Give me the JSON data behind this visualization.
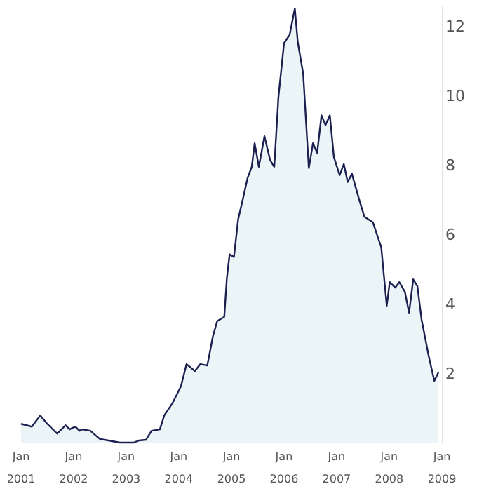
{
  "chart_data": {
    "type": "area",
    "x": [
      "2001-01-01",
      "2001-03-17",
      "2001-05-14",
      "2001-07-02",
      "2001-09-09",
      "2001-11-06",
      "2001-12-04",
      "2002-01-12",
      "2002-02-11",
      "2002-03-01",
      "2002-04-27",
      "2002-07-04",
      "2002-09-01",
      "2002-11-17",
      "2003-02-22",
      "2003-03-30",
      "2003-05-18",
      "2003-06-26",
      "2003-08-23",
      "2003-09-22",
      "2003-11-19",
      "2004-01-16",
      "2004-02-24",
      "2004-04-22",
      "2004-05-30",
      "2004-07-17",
      "2004-08-25",
      "2004-09-24",
      "2004-11-12",
      "2004-11-30",
      "2004-12-19",
      "2005-01-18",
      "2005-02-16",
      "2005-03-15",
      "2005-04-23",
      "2005-05-22",
      "2005-06-11",
      "2005-07-10",
      "2005-08-18",
      "2005-09-26",
      "2005-10-25",
      "2005-11-23",
      "2006-01-01",
      "2006-02-09",
      "2006-03-17",
      "2006-04-06",
      "2006-05-14",
      "2006-06-22",
      "2006-07-21",
      "2006-08-19",
      "2006-09-18",
      "2006-10-16",
      "2006-11-15",
      "2006-12-13",
      "2007-01-22",
      "2007-02-20",
      "2007-03-19",
      "2007-04-17",
      "2007-06-05",
      "2007-07-13",
      "2007-09-10",
      "2007-11-07",
      "2007-12-15",
      "2008-01-05",
      "2008-02-12",
      "2008-03-11",
      "2008-04-19",
      "2008-05-18",
      "2008-06-16",
      "2008-07-15",
      "2008-08-13",
      "2008-10-01",
      "2008-11-09",
      "2008-12-08"
    ],
    "series": [
      {
        "color": "#1c2050",
        "values": [
          0.56,
          0.48,
          0.8,
          0.56,
          0.28,
          0.52,
          0.4,
          0.48,
          0.36,
          0.4,
          0.36,
          0.12,
          0.08,
          0.02,
          0.02,
          0.08,
          0.1,
          0.36,
          0.4,
          0.8,
          1.16,
          1.64,
          2.28,
          2.08,
          2.28,
          2.24,
          3.08,
          3.52,
          3.64,
          4.76,
          5.44,
          5.36,
          6.44,
          6.92,
          7.64,
          7.96,
          8.64,
          7.96,
          8.84,
          8.16,
          7.96,
          9.96,
          11.52,
          11.76,
          12.52,
          11.56,
          10.64,
          7.92,
          8.64,
          8.36,
          9.44,
          9.16,
          9.44,
          8.24,
          7.72,
          8.04,
          7.52,
          7.76,
          7.04,
          6.52,
          6.36,
          5.64,
          3.96,
          4.64,
          4.48,
          4.64,
          4.36,
          3.76,
          4.72,
          4.52,
          3.56,
          2.52,
          1.8,
          2.04
        ]
      }
    ],
    "xlim": [
      "2001-01-01",
      "2009-01-01"
    ],
    "xticks": [
      {
        "value": "2001-01-01",
        "label": "Jan\n2001"
      },
      {
        "value": "2002-01-01",
        "label": "Jan\n2002"
      },
      {
        "value": "2003-01-01",
        "label": "Jan\n2003"
      },
      {
        "value": "2004-01-01",
        "label": "Jan\n2004"
      },
      {
        "value": "2005-01-01",
        "label": "Jan\n2005"
      },
      {
        "value": "2006-01-01",
        "label": "Jan\n2006"
      },
      {
        "value": "2007-01-01",
        "label": "Jan\n2007"
      },
      {
        "value": "2008-01-01",
        "label": "Jan\n2008"
      },
      {
        "value": "2009-01-01",
        "label": "Jan\n2009"
      }
    ],
    "ylim": [
      0,
      12.6
    ],
    "yticks": [
      2,
      4,
      6,
      8,
      10,
      12
    ],
    "grid": false
  }
}
